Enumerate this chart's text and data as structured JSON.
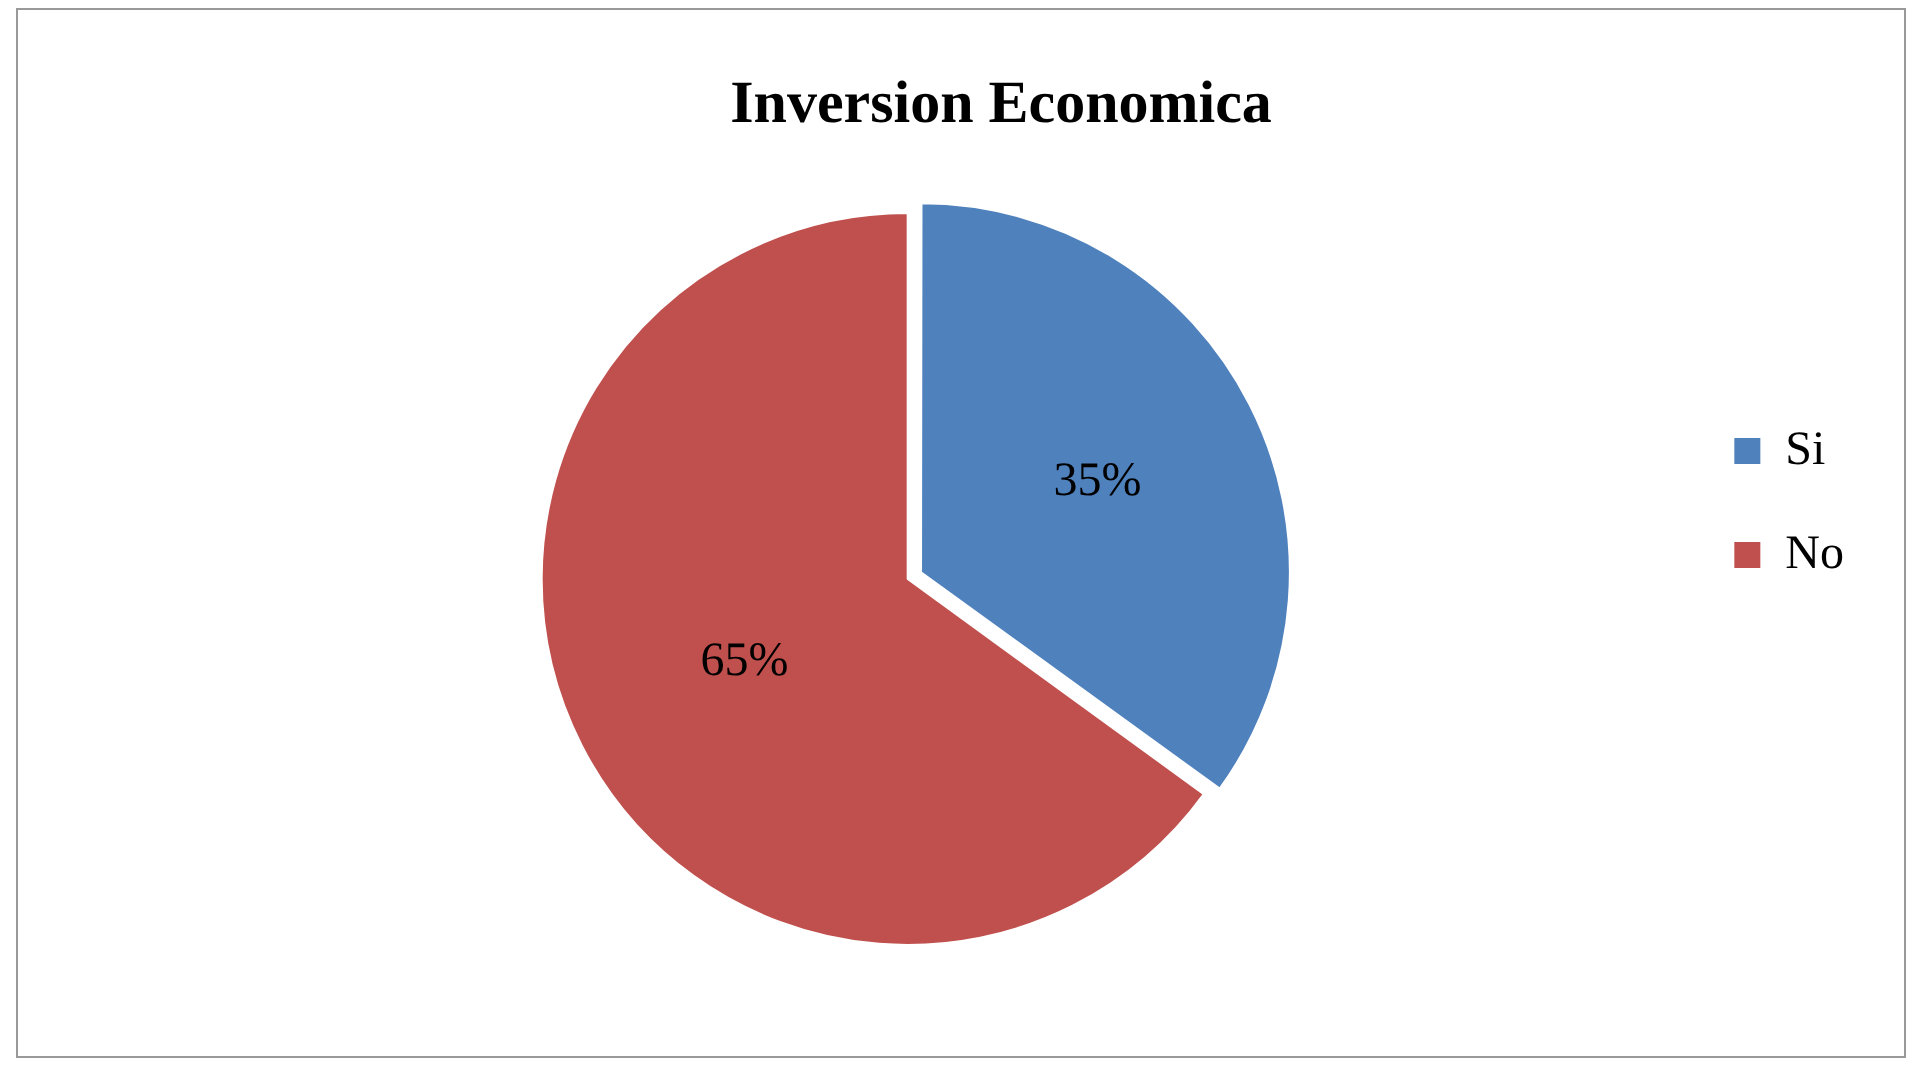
{
  "chart_data": {
    "type": "pie",
    "title": "Inversion Economica",
    "categories": [
      "Si",
      "No"
    ],
    "values": [
      35,
      65
    ],
    "colors": [
      "#4f81bd",
      "#c0504d"
    ],
    "value_labels": [
      "35%",
      "65%"
    ],
    "legend": "right"
  }
}
